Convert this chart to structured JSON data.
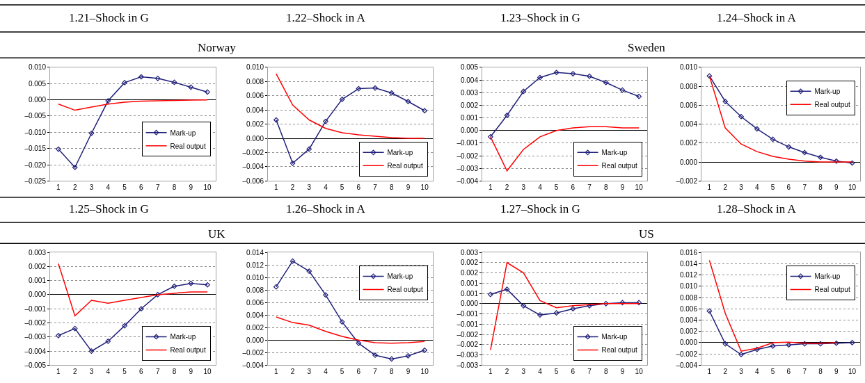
{
  "chart_data": [
    {
      "type": "line",
      "title": "1.21–Shock in G",
      "subtitle": "Norway",
      "categories": [
        "1",
        "2",
        "3",
        "4",
        "5",
        "6",
        "7",
        "8",
        "9",
        "10"
      ],
      "ylim": [
        -0.025,
        0.01
      ],
      "grid": "y",
      "legend": "right",
      "yticks": [
        {
          "value": -0.025,
          "label": "–0.025"
        },
        {
          "value": -0.02,
          "label": "–0.020"
        },
        {
          "value": -0.015,
          "label": "–0.015"
        },
        {
          "value": -0.01,
          "label": "–0.010"
        },
        {
          "value": -0.005,
          "label": "–0.005"
        },
        {
          "value": 0.0,
          "label": "0.000"
        },
        {
          "value": 0.005,
          "label": "0.005"
        },
        {
          "value": 0.01,
          "label": "0.010"
        }
      ],
      "series": [
        {
          "name": "Mark-up",
          "color": "#1f1f7a",
          "marker": "diamond",
          "values": [
            -0.0152,
            -0.0208,
            -0.0103,
            -0.0003,
            0.0053,
            0.0071,
            0.0066,
            0.0054,
            0.0039,
            0.0024
          ]
        },
        {
          "name": "Real output",
          "color": "#ff0000",
          "marker": "none",
          "values": [
            -0.0013,
            -0.0032,
            -0.0022,
            -0.0013,
            -0.0007,
            -0.0004,
            -0.0003,
            -0.0002,
            -0.0001,
            0.0
          ]
        }
      ]
    },
    {
      "type": "line",
      "title": "1.22–Shock in A",
      "categories": [
        "1",
        "2",
        "3",
        "4",
        "5",
        "6",
        "7",
        "8",
        "9",
        "10"
      ],
      "ylim": [
        -0.006,
        0.01
      ],
      "grid": "y",
      "legend": "bottom right",
      "yticks": [
        {
          "value": -0.006,
          "label": "–0.006"
        },
        {
          "value": -0.004,
          "label": "–0.004"
        },
        {
          "value": -0.002,
          "label": "–0.002"
        },
        {
          "value": 0.0,
          "label": "0.000"
        },
        {
          "value": 0.002,
          "label": "0.002"
        },
        {
          "value": 0.004,
          "label": "0.004"
        },
        {
          "value": 0.006,
          "label": "0.006"
        },
        {
          "value": 0.008,
          "label": "0.008"
        },
        {
          "value": 0.01,
          "label": "0.010"
        }
      ],
      "series": [
        {
          "name": "Mark-up",
          "color": "#1f1f7a",
          "marker": "diamond",
          "values": [
            0.0026,
            -0.0035,
            -0.0015,
            0.0024,
            0.0055,
            0.007,
            0.0071,
            0.0064,
            0.0052,
            0.0039
          ]
        },
        {
          "name": "Real output",
          "color": "#ff0000",
          "marker": "none",
          "values": [
            0.0091,
            0.0047,
            0.0026,
            0.0014,
            0.0008,
            0.0005,
            0.0003,
            0.0001,
            0.0,
            0.0
          ]
        }
      ]
    },
    {
      "type": "line",
      "title": "1.23–Shock in G",
      "subtitle": "Sweden",
      "categories": [
        "1",
        "2",
        "3",
        "4",
        "5",
        "6",
        "7",
        "8",
        "9",
        "10"
      ],
      "ylim": [
        -0.004,
        0.005
      ],
      "grid": "y",
      "legend": "bottom right",
      "yticks": [
        {
          "value": -0.004,
          "label": "–0.004"
        },
        {
          "value": -0.003,
          "label": "–0.003"
        },
        {
          "value": -0.002,
          "label": "–0.002"
        },
        {
          "value": -0.001,
          "label": "–0.001"
        },
        {
          "value": 0.0,
          "label": "0.000"
        },
        {
          "value": 0.001,
          "label": "0.001"
        },
        {
          "value": 0.002,
          "label": "0.002"
        },
        {
          "value": 0.003,
          "label": "0.003"
        },
        {
          "value": 0.004,
          "label": "0.004"
        },
        {
          "value": 0.005,
          "label": "0.005"
        }
      ],
      "series": [
        {
          "name": "Mark-up",
          "color": "#1f1f7a",
          "marker": "diamond",
          "values": [
            -0.0005,
            0.0012,
            0.0031,
            0.0042,
            0.0046,
            0.0045,
            0.0043,
            0.0038,
            0.0032,
            0.0027
          ]
        },
        {
          "name": "Real output",
          "color": "#ff0000",
          "marker": "none",
          "values": [
            -0.0005,
            -0.0032,
            -0.0015,
            -0.0005,
            0.0,
            0.0002,
            0.0003,
            0.0003,
            0.0002,
            0.0002
          ]
        }
      ]
    },
    {
      "type": "line",
      "title": "1.24–Shock in A",
      "categories": [
        "1",
        "2",
        "3",
        "4",
        "5",
        "6",
        "7",
        "8",
        "9",
        "10"
      ],
      "ylim": [
        -0.002,
        0.01
      ],
      "grid": "y",
      "legend": "top right",
      "yticks": [
        {
          "value": -0.002,
          "label": "–0.002"
        },
        {
          "value": 0.0,
          "label": "0.000"
        },
        {
          "value": 0.002,
          "label": "0.002"
        },
        {
          "value": 0.004,
          "label": "0.004"
        },
        {
          "value": 0.006,
          "label": "0.006"
        },
        {
          "value": 0.008,
          "label": "0.008"
        },
        {
          "value": 0.01,
          "label": "0.010"
        }
      ],
      "series": [
        {
          "name": "Mark-up",
          "color": "#1f1f7a",
          "marker": "diamond",
          "values": [
            0.0091,
            0.0064,
            0.0048,
            0.0035,
            0.0024,
            0.0016,
            0.001,
            0.0005,
            0.0001,
            -0.0001
          ]
        },
        {
          "name": "Real output",
          "color": "#ff0000",
          "marker": "none",
          "values": [
            0.0091,
            0.0036,
            0.0019,
            0.0011,
            0.0006,
            0.0003,
            0.0001,
            0.0,
            0.0,
            0.0
          ]
        }
      ]
    },
    {
      "type": "line",
      "title": "1.25–Shock in G",
      "subtitle": "UK",
      "categories": [
        "1",
        "2",
        "3",
        "4",
        "5",
        "6",
        "7",
        "8",
        "9",
        "10"
      ],
      "ylim": [
        -0.005,
        0.003
      ],
      "grid": "y",
      "legend": "bottom right",
      "yticks": [
        {
          "value": -0.005,
          "label": "–0.005"
        },
        {
          "value": -0.004,
          "label": "–0.004"
        },
        {
          "value": -0.003,
          "label": "–0.003"
        },
        {
          "value": -0.002,
          "label": "–0.002"
        },
        {
          "value": -0.001,
          "label": "–0.001"
        },
        {
          "value": 0.0,
          "label": "0.000"
        },
        {
          "value": 0.001,
          "label": "0.001"
        },
        {
          "value": 0.002,
          "label": "0.002"
        },
        {
          "value": 0.003,
          "label": "0.003"
        }
      ],
      "series": [
        {
          "name": "Mark-up",
          "color": "#1f1f7a",
          "marker": "diamond",
          "values": [
            -0.0029,
            -0.0024,
            -0.004,
            -0.0033,
            -0.0022,
            -0.001,
            0.0,
            0.0006,
            0.0008,
            0.0007
          ]
        },
        {
          "name": "Real output",
          "color": "#ff0000",
          "marker": "none",
          "values": [
            0.0022,
            -0.0015,
            -0.0004,
            -0.0006,
            -0.0004,
            -0.0002,
            0.0,
            0.0001,
            0.0002,
            0.0002
          ]
        }
      ]
    },
    {
      "type": "line",
      "title": "1.26–Shock in A",
      "categories": [
        "1",
        "2",
        "3",
        "4",
        "5",
        "6",
        "7",
        "8",
        "9",
        "10"
      ],
      "ylim": [
        -0.004,
        0.014
      ],
      "grid": "y",
      "legend": "top right",
      "yticks": [
        {
          "value": -0.004,
          "label": "–0.004"
        },
        {
          "value": -0.002,
          "label": "–0.002"
        },
        {
          "value": 0.0,
          "label": "0.000"
        },
        {
          "value": 0.002,
          "label": "0.002"
        },
        {
          "value": 0.004,
          "label": "0.004"
        },
        {
          "value": 0.006,
          "label": "0.006"
        },
        {
          "value": 0.008,
          "label": "0.008"
        },
        {
          "value": 0.01,
          "label": "0.010"
        },
        {
          "value": 0.012,
          "label": "0.012"
        },
        {
          "value": 0.014,
          "label": "0.014"
        }
      ],
      "series": [
        {
          "name": "Mark-up",
          "color": "#1f1f7a",
          "marker": "diamond",
          "values": [
            0.0085,
            0.0126,
            0.011,
            0.0072,
            0.0029,
            -0.0005,
            -0.0024,
            -0.003,
            -0.0025,
            -0.0016
          ]
        },
        {
          "name": "Real output",
          "color": "#ff0000",
          "marker": "none",
          "values": [
            0.0037,
            0.0028,
            0.0024,
            0.0014,
            0.0006,
            0.0,
            -0.0004,
            -0.0005,
            -0.0004,
            -0.0002
          ]
        }
      ]
    },
    {
      "type": "line",
      "title": "1.27–Shock in G",
      "subtitle": "US",
      "categories": [
        "1",
        "2",
        "3",
        "4",
        "5",
        "6",
        "7",
        "8",
        "9",
        "10"
      ],
      "ylim": [
        -0.003,
        0.0025
      ],
      "grid": "y",
      "legend": "bottom right",
      "yticks": [
        {
          "value": -0.003,
          "label": "–0.003"
        },
        {
          "value": -0.0025,
          "label": "–0.003"
        },
        {
          "value": -0.002,
          "label": "–0.002"
        },
        {
          "value": -0.0015,
          "label": "–0.002"
        },
        {
          "value": -0.001,
          "label": "–0.001"
        },
        {
          "value": -0.0005,
          "label": "–0.001"
        },
        {
          "value": 0.0,
          "label": "0.000"
        },
        {
          "value": 0.0005,
          "label": "0.001"
        },
        {
          "value": 0.001,
          "label": "0.001"
        },
        {
          "value": 0.0015,
          "label": "0.002"
        },
        {
          "value": 0.002,
          "label": "0.002"
        },
        {
          "value": 0.0025,
          "label": "0.003"
        }
      ],
      "series": [
        {
          "name": "Mark-up",
          "color": "#1f1f7a",
          "marker": "diamond",
          "values": [
            0.00045,
            0.0007,
            -0.0001,
            -0.00055,
            -0.00045,
            -0.00025,
            -0.0001,
            0.0,
            5e-05,
            5e-05
          ]
        },
        {
          "name": "Real output",
          "color": "#ff0000",
          "marker": "none",
          "values": [
            -0.00225,
            0.002,
            0.0015,
            0.00015,
            -0.0002,
            -0.0001,
            -5e-05,
            0.0,
            0.0,
            0.0
          ]
        }
      ]
    },
    {
      "type": "line",
      "title": "1.28–Shock in A",
      "categories": [
        "1",
        "2",
        "3",
        "4",
        "5",
        "6",
        "7",
        "8",
        "9",
        "10"
      ],
      "ylim": [
        -0.004,
        0.016
      ],
      "grid": "y",
      "legend": "top right",
      "yticks": [
        {
          "value": -0.004,
          "label": "–0.004"
        },
        {
          "value": -0.002,
          "label": "–0.002"
        },
        {
          "value": 0.0,
          "label": "0.000"
        },
        {
          "value": 0.002,
          "label": "0.002"
        },
        {
          "value": 0.004,
          "label": "0.004"
        },
        {
          "value": 0.006,
          "label": "0.006"
        },
        {
          "value": 0.008,
          "label": "0.008"
        },
        {
          "value": 0.01,
          "label": "0.010"
        },
        {
          "value": 0.012,
          "label": "0.012"
        },
        {
          "value": 0.014,
          "label": "0.014"
        },
        {
          "value": 0.016,
          "label": "0.016"
        }
      ],
      "series": [
        {
          "name": "Mark-up",
          "color": "#1f1f7a",
          "marker": "diamond",
          "values": [
            0.0056,
            -0.0002,
            -0.0021,
            -0.0012,
            -0.0006,
            -0.0004,
            -0.0002,
            -0.0002,
            -0.0001,
            0.0
          ]
        },
        {
          "name": "Real output",
          "color": "#ff0000",
          "marker": "none",
          "values": [
            0.0146,
            0.0052,
            -0.0015,
            -0.001,
            0.0,
            0.0001,
            -0.0001,
            -0.0001,
            0.0,
            null
          ]
        }
      ]
    }
  ]
}
